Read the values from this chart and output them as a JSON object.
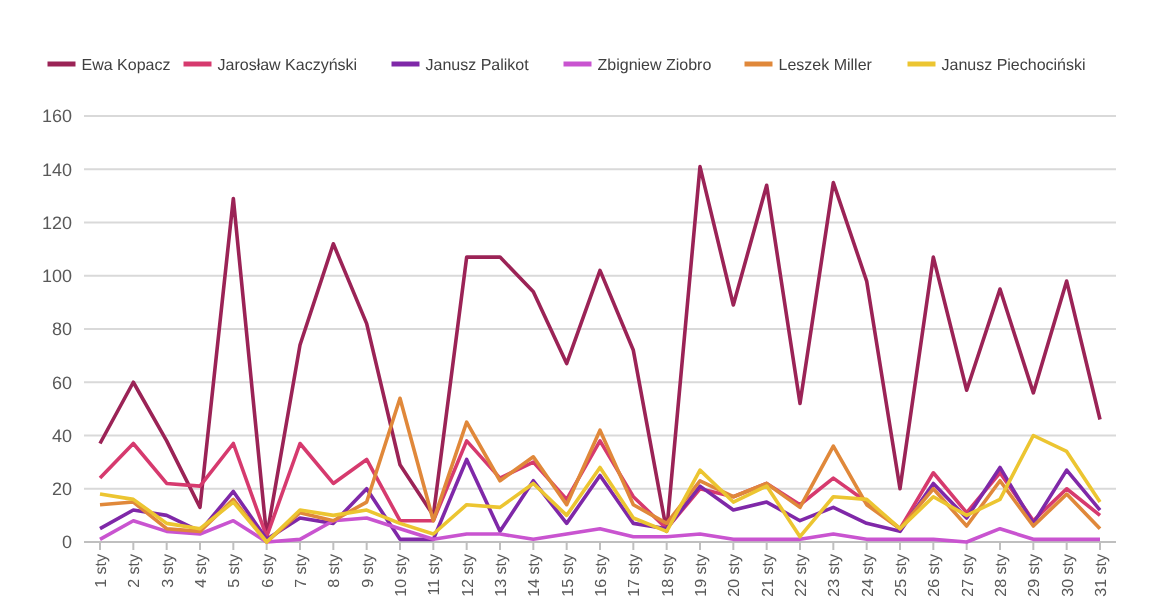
{
  "chart_data": {
    "type": "line",
    "categories": [
      "1 sty",
      "2 sty",
      "3 sty",
      "4 sty",
      "5 sty",
      "6 sty",
      "7 sty",
      "8 sty",
      "9 sty",
      "10 sty",
      "11 sty",
      "12 sty",
      "13 sty",
      "14 sty",
      "15 sty",
      "16 sty",
      "17 sty",
      "18 sty",
      "19 sty",
      "20 sty",
      "21 sty",
      "22 sty",
      "23 sty",
      "24 sty",
      "25 sty",
      "26 sty",
      "27 sty",
      "28 sty",
      "29 sty",
      "30 sty",
      "31 sty"
    ],
    "series": [
      {
        "name": "Ewa Kopacz",
        "color": "#9b2356",
        "values": [
          37,
          60,
          38,
          13,
          129,
          2,
          74,
          112,
          82,
          29,
          10,
          107,
          107,
          94,
          67,
          102,
          72,
          4,
          141,
          89,
          134,
          52,
          135,
          98,
          20,
          107,
          57,
          95,
          56,
          98,
          46
        ]
      },
      {
        "name": "Jarosław Kaczyński",
        "color": "#d63a6e",
        "values": [
          24,
          37,
          22,
          21,
          37,
          2,
          37,
          22,
          31,
          8,
          8,
          38,
          24,
          30,
          16,
          38,
          17,
          5,
          20,
          17,
          22,
          14,
          24,
          15,
          5,
          26,
          11,
          26,
          8,
          20,
          10
        ]
      },
      {
        "name": "Janusz Palikot",
        "color": "#7f28a8",
        "values": [
          5,
          12,
          10,
          4,
          19,
          1,
          9,
          7,
          20,
          1,
          1,
          31,
          4,
          23,
          7,
          25,
          7,
          5,
          21,
          12,
          15,
          8,
          13,
          7,
          4,
          22,
          9,
          28,
          7,
          27,
          12
        ]
      },
      {
        "name": "Zbigniew Ziobro",
        "color": "#c954d0",
        "values": [
          1,
          8,
          4,
          3,
          8,
          0,
          1,
          8,
          9,
          5,
          1,
          3,
          3,
          1,
          3,
          5,
          2,
          2,
          3,
          1,
          1,
          1,
          3,
          1,
          1,
          1,
          0,
          5,
          1,
          1,
          1
        ]
      },
      {
        "name": "Leszek Miller",
        "color": "#e0883a",
        "values": [
          14,
          15,
          5,
          4,
          16,
          0,
          11,
          8,
          15,
          54,
          8,
          45,
          23,
          32,
          14,
          42,
          14,
          7,
          23,
          17,
          22,
          13,
          36,
          14,
          5,
          20,
          6,
          23,
          6,
          18,
          5
        ]
      },
      {
        "name": "Janusz Piechociński",
        "color": "#ecc531",
        "values": [
          18,
          16,
          7,
          5,
          15,
          0,
          12,
          10,
          12,
          7,
          3,
          14,
          13,
          22,
          10,
          28,
          9,
          4,
          27,
          15,
          21,
          2,
          17,
          16,
          5,
          17,
          10,
          16,
          40,
          34,
          15
        ]
      }
    ],
    "ylim": [
      0,
      160
    ],
    "yticks": [
      0,
      20,
      40,
      60,
      80,
      100,
      120,
      140,
      160
    ],
    "grid": "y",
    "legend": "top",
    "marker": "none",
    "line_style": "solid"
  }
}
